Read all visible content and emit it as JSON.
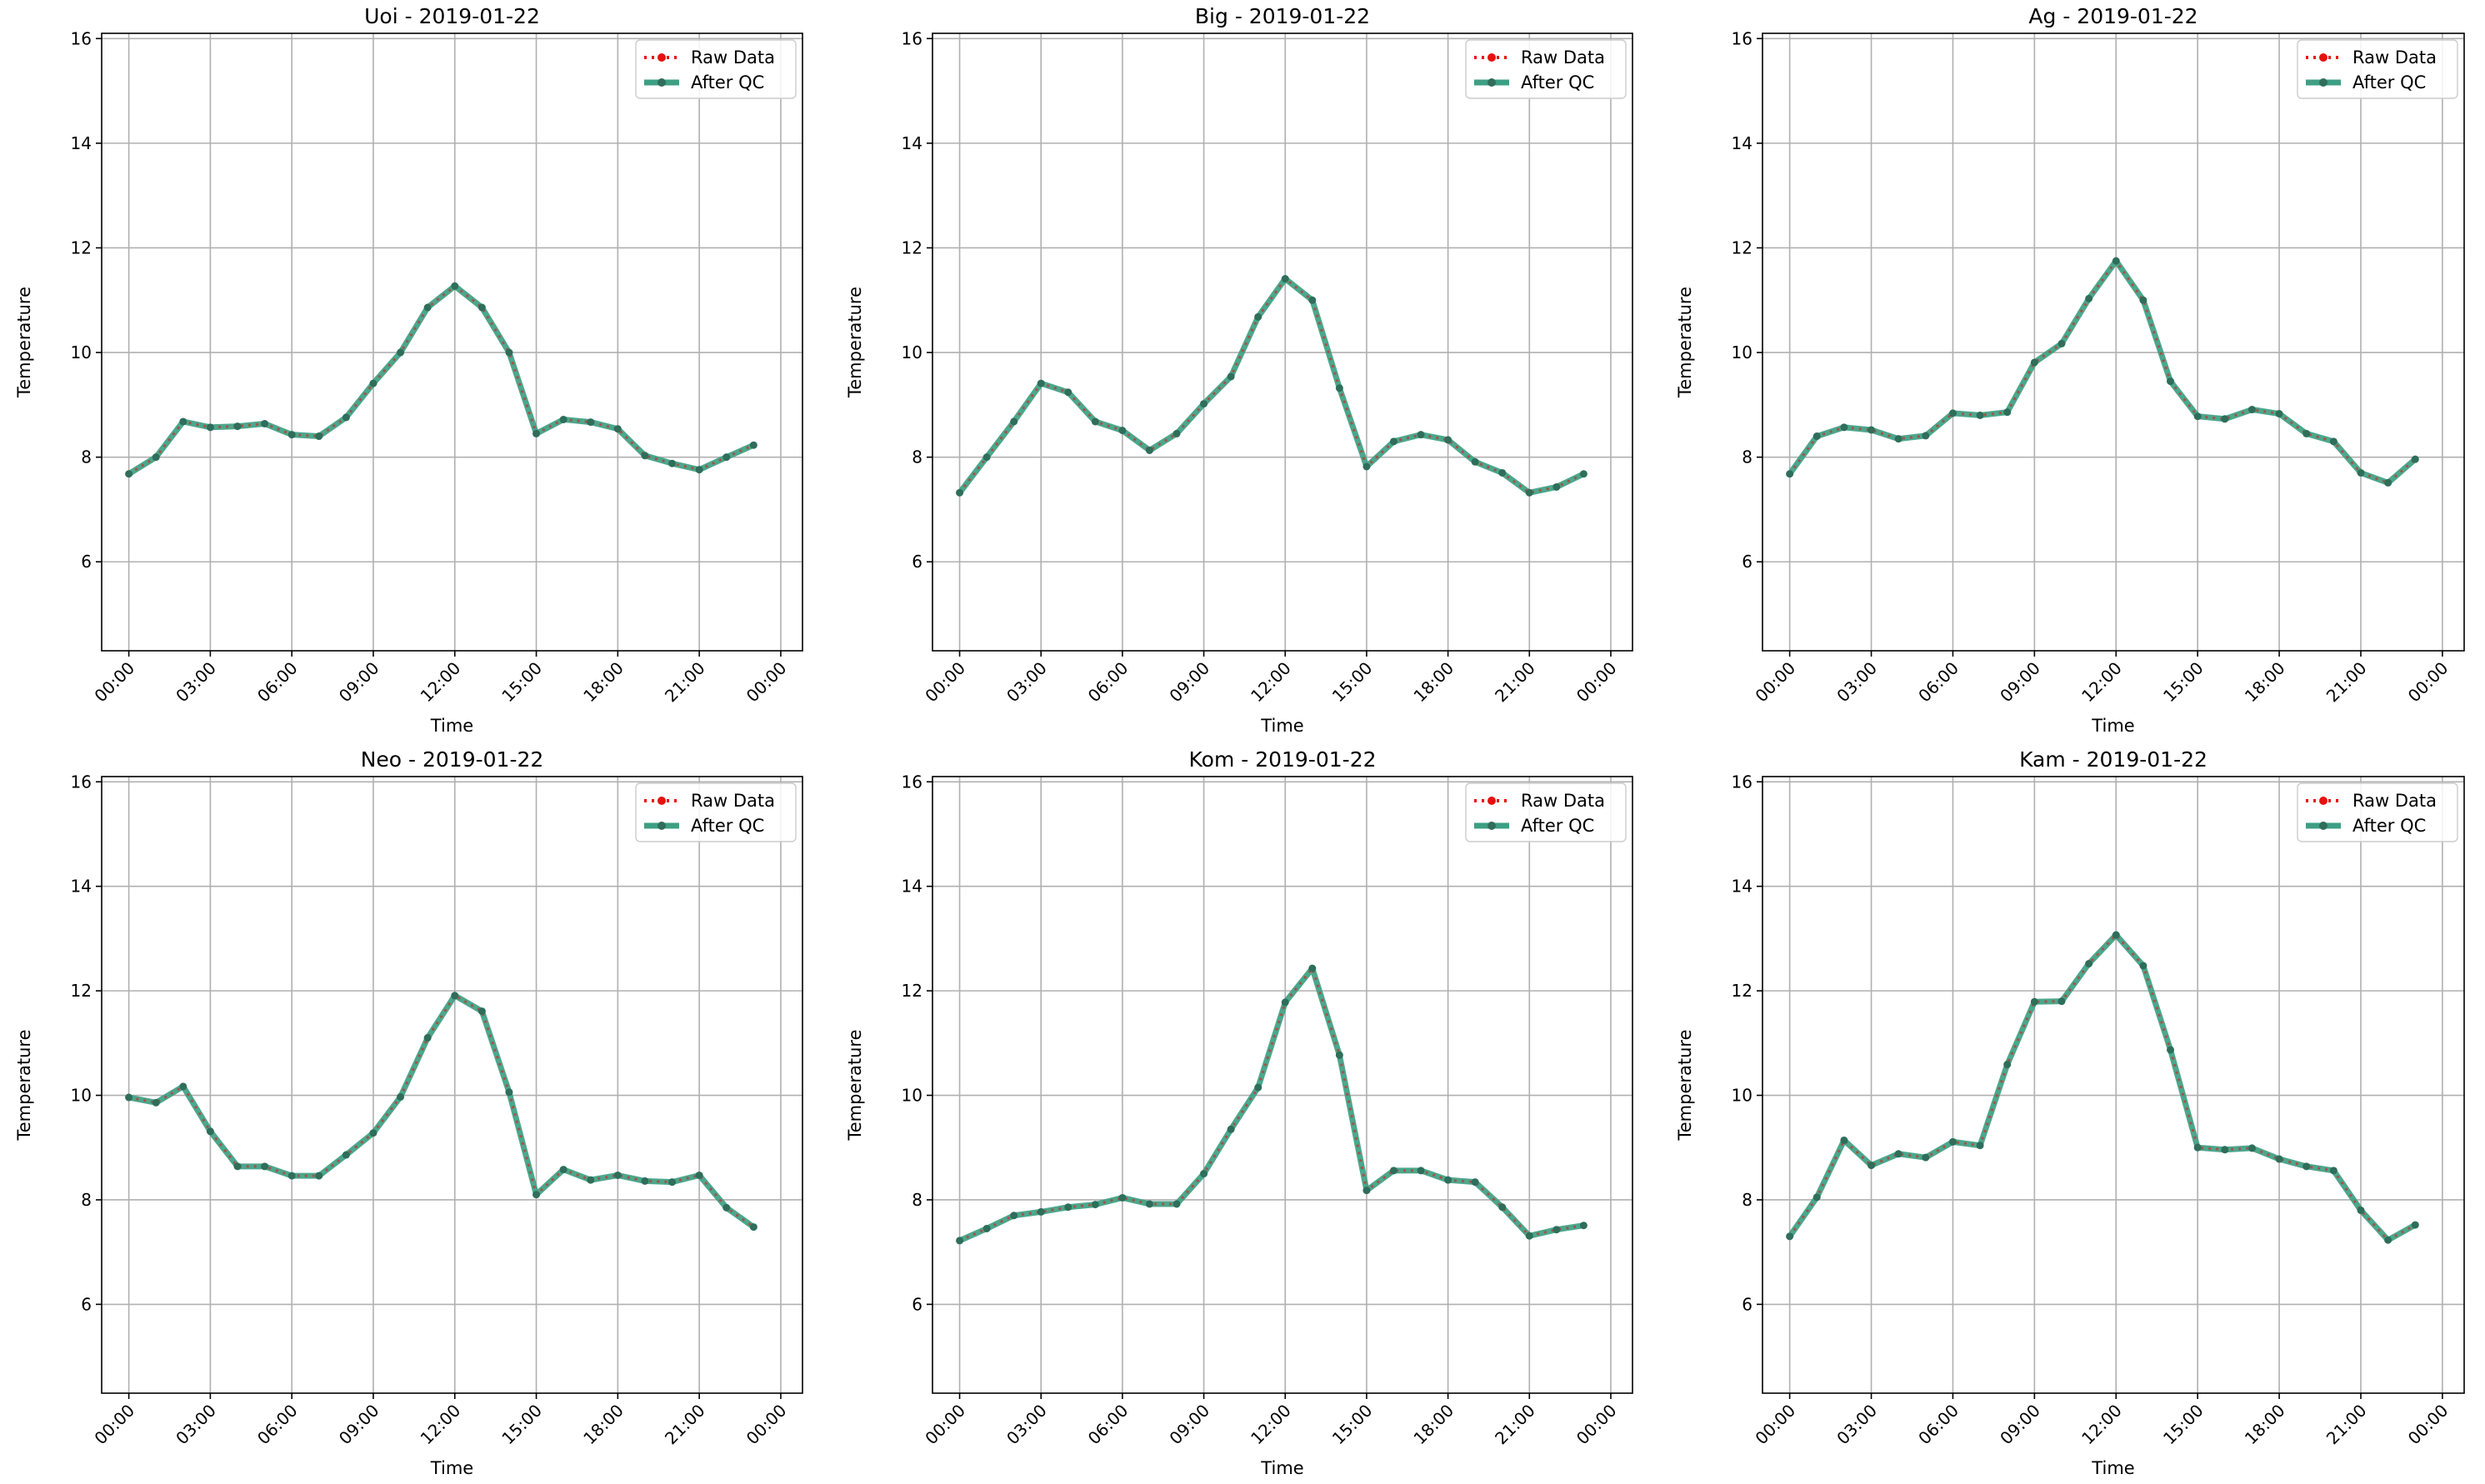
{
  "colors": {
    "raw": "#e8100f",
    "qc": "#3d9f83",
    "marker": "#2f6e5a",
    "grid": "#b0b0b0",
    "legend_border": "#cccccc"
  },
  "chart_data": [
    {
      "type": "line",
      "title": "Uoi - 2019-01-22",
      "xlabel": "Time",
      "ylabel": "Temperature",
      "ylim": [
        4.3,
        16.1
      ],
      "yticks": [
        "6",
        "8",
        "10",
        "12",
        "14",
        "16"
      ],
      "xticks": [
        "00:00",
        "03:00",
        "06:00",
        "09:00",
        "12:00",
        "15:00",
        "18:00",
        "21:00",
        "00:00"
      ],
      "grid": true,
      "legend_placement": "top-right",
      "x": [
        "00:00",
        "01:00",
        "02:00",
        "03:00",
        "04:00",
        "05:00",
        "06:00",
        "07:00",
        "08:00",
        "09:00",
        "10:00",
        "11:00",
        "12:00",
        "13:00",
        "14:00",
        "15:00",
        "16:00",
        "17:00",
        "18:00",
        "19:00",
        "20:00",
        "21:00",
        "22:00",
        "23:00"
      ],
      "series": [
        {
          "name": "Raw Data",
          "values": [
            7.68,
            8.0,
            8.68,
            8.57,
            8.59,
            8.64,
            8.43,
            8.4,
            8.76,
            9.41,
            10.0,
            10.86,
            11.27,
            10.86,
            10.0,
            8.45,
            8.72,
            8.67,
            8.54,
            8.03,
            7.88,
            7.76,
            8.0,
            8.23
          ]
        },
        {
          "name": "After QC",
          "values": [
            7.68,
            8.0,
            8.68,
            8.57,
            8.59,
            8.64,
            8.43,
            8.4,
            8.76,
            9.41,
            10.0,
            10.86,
            11.27,
            10.86,
            10.0,
            8.45,
            8.72,
            8.67,
            8.54,
            8.03,
            7.88,
            7.76,
            8.0,
            8.23
          ]
        }
      ]
    },
    {
      "type": "line",
      "title": "Big - 2019-01-22",
      "xlabel": "Time",
      "ylabel": "Temperature",
      "ylim": [
        4.3,
        16.1
      ],
      "yticks": [
        "6",
        "8",
        "10",
        "12",
        "14",
        "16"
      ],
      "xticks": [
        "00:00",
        "03:00",
        "06:00",
        "09:00",
        "12:00",
        "15:00",
        "18:00",
        "21:00",
        "00:00"
      ],
      "grid": true,
      "legend_placement": "top-right",
      "x": [
        "00:00",
        "01:00",
        "02:00",
        "03:00",
        "04:00",
        "05:00",
        "06:00",
        "07:00",
        "08:00",
        "09:00",
        "10:00",
        "11:00",
        "12:00",
        "13:00",
        "14:00",
        "15:00",
        "16:00",
        "17:00",
        "18:00",
        "19:00",
        "20:00",
        "21:00",
        "22:00",
        "23:00"
      ],
      "series": [
        {
          "name": "Raw Data",
          "values": [
            7.32,
            8.0,
            8.68,
            9.41,
            9.24,
            8.68,
            8.51,
            8.13,
            8.45,
            9.02,
            9.54,
            10.68,
            11.41,
            11.0,
            9.32,
            7.82,
            8.3,
            8.43,
            8.33,
            7.91,
            7.7,
            7.32,
            7.43,
            7.68
          ]
        },
        {
          "name": "After QC",
          "values": [
            7.32,
            8.0,
            8.68,
            9.41,
            9.24,
            8.68,
            8.51,
            8.13,
            8.45,
            9.02,
            9.54,
            10.68,
            11.41,
            11.0,
            9.32,
            7.82,
            8.3,
            8.43,
            8.33,
            7.91,
            7.7,
            7.32,
            7.43,
            7.68
          ]
        }
      ]
    },
    {
      "type": "line",
      "title": "Ag - 2019-01-22",
      "xlabel": "Time",
      "ylabel": "Temperature",
      "ylim": [
        4.3,
        16.1
      ],
      "yticks": [
        "6",
        "8",
        "10",
        "12",
        "14",
        "16"
      ],
      "xticks": [
        "00:00",
        "03:00",
        "06:00",
        "09:00",
        "12:00",
        "15:00",
        "18:00",
        "21:00",
        "00:00"
      ],
      "grid": true,
      "legend_placement": "top-right",
      "x": [
        "00:00",
        "01:00",
        "02:00",
        "03:00",
        "04:00",
        "05:00",
        "06:00",
        "07:00",
        "08:00",
        "09:00",
        "10:00",
        "11:00",
        "12:00",
        "13:00",
        "14:00",
        "15:00",
        "16:00",
        "17:00",
        "18:00",
        "19:00",
        "20:00",
        "21:00",
        "22:00",
        "23:00"
      ],
      "series": [
        {
          "name": "Raw Data",
          "values": [
            7.68,
            8.4,
            8.57,
            8.52,
            8.35,
            8.41,
            8.84,
            8.8,
            8.86,
            9.81,
            10.17,
            11.03,
            11.75,
            11.0,
            9.45,
            8.78,
            8.73,
            8.91,
            8.83,
            8.45,
            8.3,
            7.7,
            7.51,
            7.96
          ]
        },
        {
          "name": "After QC",
          "values": [
            7.68,
            8.4,
            8.57,
            8.52,
            8.35,
            8.41,
            8.84,
            8.8,
            8.86,
            9.81,
            10.17,
            11.03,
            11.75,
            11.0,
            9.45,
            8.78,
            8.73,
            8.91,
            8.83,
            8.45,
            8.3,
            7.7,
            7.51,
            7.96
          ]
        }
      ]
    },
    {
      "type": "line",
      "title": "Neo - 2019-01-22",
      "xlabel": "Time",
      "ylabel": "Temperature",
      "ylim": [
        4.3,
        16.1
      ],
      "yticks": [
        "6",
        "8",
        "10",
        "12",
        "14",
        "16"
      ],
      "xticks": [
        "00:00",
        "03:00",
        "06:00",
        "09:00",
        "12:00",
        "15:00",
        "18:00",
        "21:00",
        "00:00"
      ],
      "grid": true,
      "legend_placement": "top-right",
      "x": [
        "00:00",
        "01:00",
        "02:00",
        "03:00",
        "04:00",
        "05:00",
        "06:00",
        "07:00",
        "08:00",
        "09:00",
        "10:00",
        "11:00",
        "12:00",
        "13:00",
        "14:00",
        "15:00",
        "16:00",
        "17:00",
        "18:00",
        "19:00",
        "20:00",
        "21:00",
        "22:00",
        "23:00"
      ],
      "series": [
        {
          "name": "Raw Data",
          "values": [
            9.96,
            9.86,
            10.17,
            9.31,
            8.64,
            8.64,
            8.46,
            8.46,
            8.86,
            9.28,
            9.97,
            11.1,
            11.91,
            11.61,
            10.06,
            8.1,
            8.58,
            8.38,
            8.47,
            8.36,
            8.34,
            8.47,
            7.85,
            7.48
          ]
        },
        {
          "name": "After QC",
          "values": [
            9.96,
            9.86,
            10.17,
            9.31,
            8.64,
            8.64,
            8.46,
            8.46,
            8.86,
            9.28,
            9.97,
            11.1,
            11.91,
            11.61,
            10.06,
            8.1,
            8.58,
            8.38,
            8.47,
            8.36,
            8.34,
            8.47,
            7.85,
            7.48
          ]
        }
      ]
    },
    {
      "type": "line",
      "title": "Kom - 2019-01-22",
      "xlabel": "Time",
      "ylabel": "Temperature",
      "ylim": [
        4.3,
        16.1
      ],
      "yticks": [
        "6",
        "8",
        "10",
        "12",
        "14",
        "16"
      ],
      "xticks": [
        "00:00",
        "03:00",
        "06:00",
        "09:00",
        "12:00",
        "15:00",
        "18:00",
        "21:00",
        "00:00"
      ],
      "grid": true,
      "legend_placement": "top-right",
      "x": [
        "00:00",
        "01:00",
        "02:00",
        "03:00",
        "04:00",
        "05:00",
        "06:00",
        "07:00",
        "08:00",
        "09:00",
        "10:00",
        "11:00",
        "12:00",
        "13:00",
        "14:00",
        "15:00",
        "16:00",
        "17:00",
        "18:00",
        "19:00",
        "20:00",
        "21:00",
        "22:00",
        "23:00"
      ],
      "series": [
        {
          "name": "Raw Data",
          "values": [
            7.22,
            7.45,
            7.7,
            7.77,
            7.86,
            7.91,
            8.04,
            7.92,
            7.92,
            8.5,
            9.35,
            10.15,
            11.78,
            12.43,
            10.77,
            8.18,
            8.56,
            8.56,
            8.38,
            8.34,
            7.86,
            7.31,
            7.43,
            7.51
          ]
        },
        {
          "name": "After QC",
          "values": [
            7.22,
            7.45,
            7.7,
            7.77,
            7.86,
            7.91,
            8.04,
            7.92,
            7.92,
            8.5,
            9.35,
            10.15,
            11.78,
            12.43,
            10.77,
            8.18,
            8.56,
            8.56,
            8.38,
            8.34,
            7.86,
            7.31,
            7.43,
            7.51
          ]
        }
      ]
    },
    {
      "type": "line",
      "title": "Kam - 2019-01-22",
      "xlabel": "Time",
      "ylabel": "Temperature",
      "ylim": [
        4.3,
        16.1
      ],
      "yticks": [
        "6",
        "8",
        "10",
        "12",
        "14",
        "16"
      ],
      "xticks": [
        "00:00",
        "03:00",
        "06:00",
        "09:00",
        "12:00",
        "15:00",
        "18:00",
        "21:00",
        "00:00"
      ],
      "grid": true,
      "legend_placement": "top-right",
      "x": [
        "00:00",
        "01:00",
        "02:00",
        "03:00",
        "04:00",
        "05:00",
        "06:00",
        "07:00",
        "08:00",
        "09:00",
        "10:00",
        "11:00",
        "12:00",
        "13:00",
        "14:00",
        "15:00",
        "16:00",
        "17:00",
        "18:00",
        "19:00",
        "20:00",
        "21:00",
        "22:00",
        "23:00"
      ],
      "series": [
        {
          "name": "Raw Data",
          "values": [
            7.3,
            8.05,
            9.14,
            8.66,
            8.88,
            8.81,
            9.11,
            9.04,
            10.59,
            11.79,
            11.8,
            12.52,
            13.07,
            12.48,
            10.87,
            9.0,
            8.96,
            8.99,
            8.78,
            8.64,
            8.56,
            7.8,
            7.23,
            7.52
          ]
        },
        {
          "name": "After QC",
          "values": [
            7.3,
            8.05,
            9.14,
            8.66,
            8.88,
            8.81,
            9.11,
            9.04,
            10.59,
            11.79,
            11.8,
            12.52,
            13.07,
            12.48,
            10.87,
            9.0,
            8.96,
            8.99,
            8.78,
            8.64,
            8.56,
            7.8,
            7.23,
            7.52
          ]
        }
      ]
    }
  ]
}
